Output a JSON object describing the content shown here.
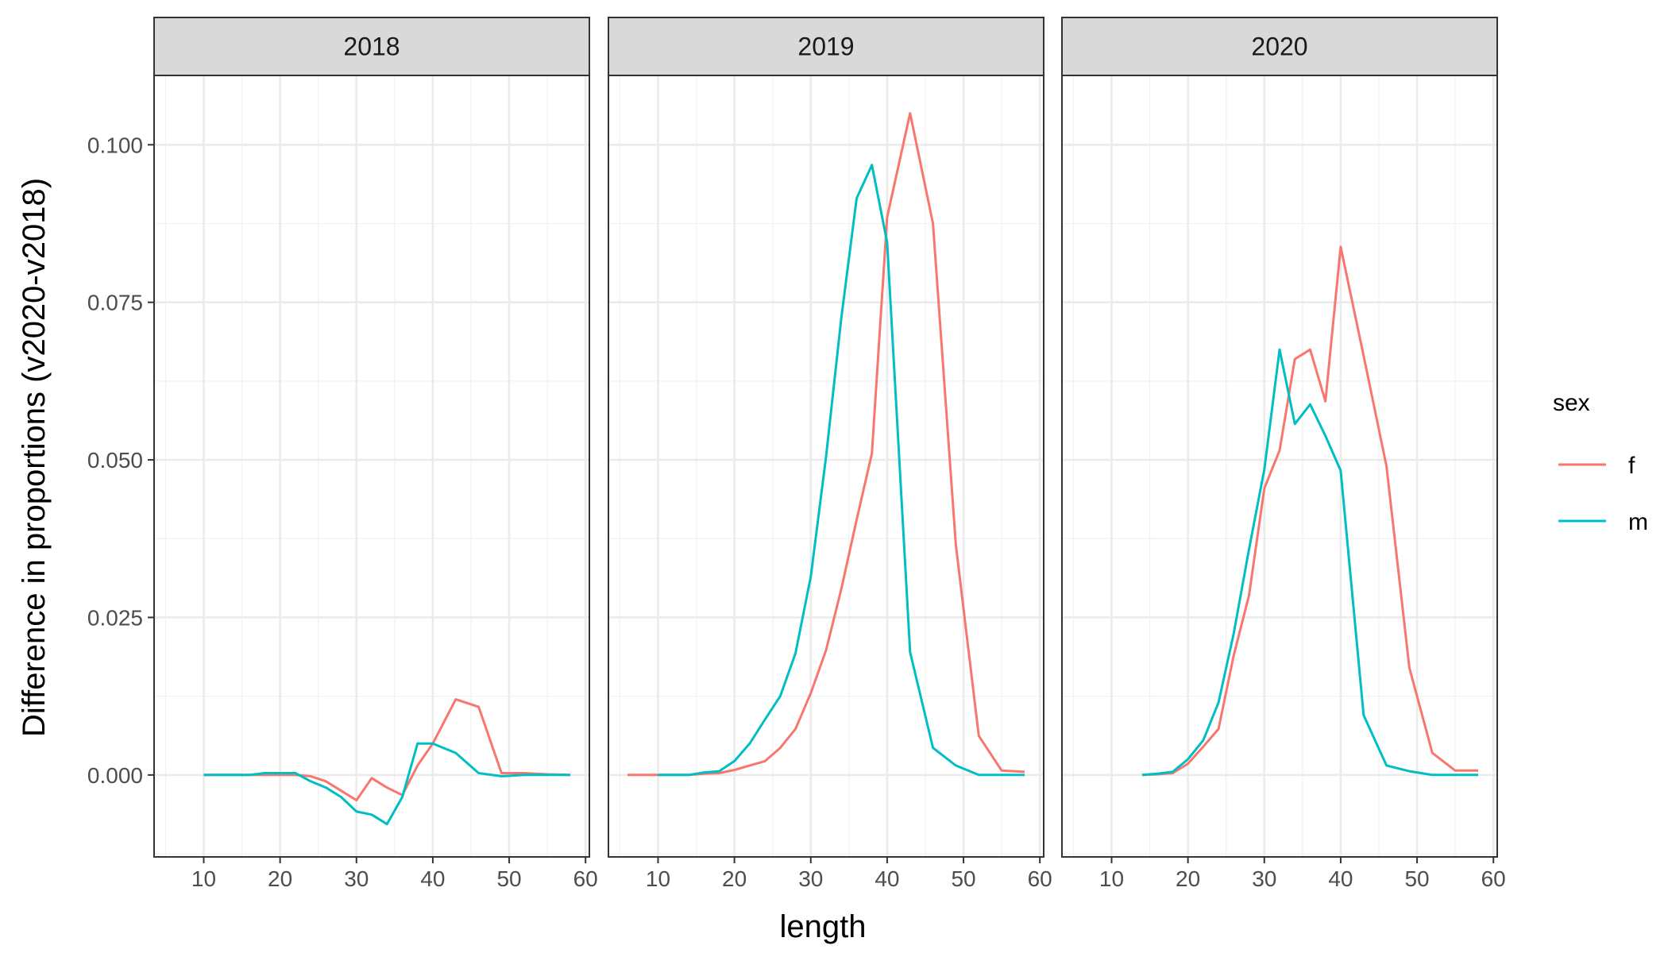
{
  "chart_data": {
    "type": "line",
    "xlabel": "length",
    "ylabel": "Difference in proportions (v2020-v2018)",
    "xlim": [
      3.5,
      60.5
    ],
    "ylim": [
      -0.013,
      0.111
    ],
    "x_ticks": [
      10,
      20,
      30,
      40,
      50,
      60
    ],
    "y_ticks": [
      0,
      0.025,
      0.05,
      0.075,
      0.1
    ],
    "y_tick_labels": [
      "0.000",
      "0.025",
      "0.050",
      "0.075",
      "0.100"
    ],
    "grid": true,
    "legend": {
      "title": "sex",
      "position": "right",
      "entries": [
        {
          "name": "f",
          "color": "#F8766D"
        },
        {
          "name": "m",
          "color": "#00BFC4"
        }
      ]
    },
    "panels": [
      {
        "label": "2018",
        "series": [
          {
            "name": "f",
            "color": "#F8766D",
            "x": [
              10,
              12,
              14,
              16,
              18,
              20,
              22,
              24,
              26,
              28,
              30,
              32,
              34,
              36,
              38,
              40,
              43,
              46,
              49,
              52,
              55,
              58
            ],
            "y": [
              0,
              0,
              0,
              0,
              0,
              0,
              0,
              -0.0002,
              -0.001,
              -0.0025,
              -0.004,
              -0.0005,
              -0.002,
              -0.0032,
              0.0015,
              0.005,
              0.012,
              0.0108,
              0.0003,
              0.0003,
              0.0001,
              0
            ]
          },
          {
            "name": "m",
            "color": "#00BFC4",
            "x": [
              10,
              12,
              14,
              16,
              18,
              20,
              22,
              24,
              26,
              28,
              30,
              32,
              34,
              36,
              38,
              40,
              43,
              46,
              49,
              52,
              55,
              58
            ],
            "y": [
              0,
              0,
              0,
              0,
              0.0003,
              0.0003,
              0.0003,
              -0.001,
              -0.002,
              -0.0035,
              -0.0058,
              -0.0063,
              -0.0078,
              -0.0035,
              0.005,
              0.005,
              0.0035,
              0.0003,
              -0.0002,
              0,
              0,
              0
            ]
          }
        ]
      },
      {
        "label": "2019",
        "series": [
          {
            "name": "f",
            "color": "#F8766D",
            "x": [
              6,
              8,
              10,
              12,
              14,
              16,
              18,
              20,
              22,
              24,
              26,
              28,
              30,
              32,
              34,
              36,
              38,
              40,
              43,
              46,
              49,
              52,
              55,
              58
            ],
            "y": [
              0,
              0,
              0,
              0,
              0,
              0.0002,
              0.0003,
              0.0008,
              0.0015,
              0.0022,
              0.0043,
              0.0073,
              0.013,
              0.0198,
              0.0295,
              0.0405,
              0.051,
              0.0885,
              0.105,
              0.0875,
              0.0365,
              0.0062,
              0.0007,
              0.0005
            ]
          },
          {
            "name": "m",
            "color": "#00BFC4",
            "x": [
              10,
              12,
              14,
              16,
              18,
              20,
              22,
              24,
              26,
              28,
              30,
              32,
              34,
              36,
              38,
              40,
              43,
              46,
              49,
              52,
              55,
              58
            ],
            "y": [
              0,
              0,
              0,
              0.0004,
              0.0006,
              0.0022,
              0.005,
              0.0088,
              0.0125,
              0.0193,
              0.0315,
              0.0505,
              0.0725,
              0.0915,
              0.0968,
              0.0845,
              0.0195,
              0.0043,
              0.0015,
              0,
              0,
              0
            ]
          }
        ]
      },
      {
        "label": "2020",
        "series": [
          {
            "name": "f",
            "color": "#F8766D",
            "x": [
              14,
              16,
              18,
              20,
              22,
              24,
              26,
              28,
              30,
              32,
              34,
              36,
              38,
              40,
              43,
              46,
              49,
              52,
              55,
              58
            ],
            "y": [
              0,
              0.0001,
              0.0003,
              0.0018,
              0.0045,
              0.0073,
              0.019,
              0.0285,
              0.0455,
              0.0515,
              0.066,
              0.0675,
              0.0593,
              0.0838,
              0.0665,
              0.049,
              0.017,
              0.0035,
              0.0007,
              0.0007
            ]
          },
          {
            "name": "m",
            "color": "#00BFC4",
            "x": [
              14,
              16,
              18,
              20,
              22,
              24,
              26,
              28,
              30,
              32,
              34,
              36,
              38,
              40,
              43,
              46,
              49,
              52,
              55,
              58
            ],
            "y": [
              0,
              0.0002,
              0.0005,
              0.0025,
              0.0055,
              0.0115,
              0.0225,
              0.0358,
              0.0485,
              0.0675,
              0.0557,
              0.0588,
              0.0538,
              0.0483,
              0.0095,
              0.0015,
              0.0006,
              0,
              0,
              0
            ]
          }
        ]
      }
    ]
  }
}
